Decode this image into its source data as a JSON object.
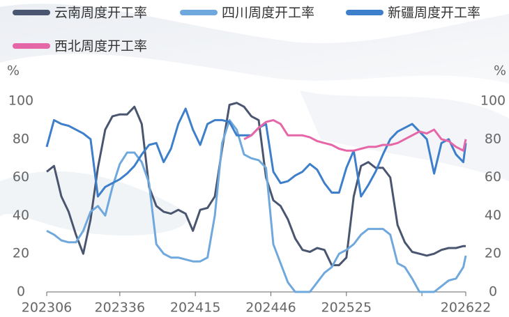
{
  "chart_data": {
    "type": "line",
    "y_label": "%",
    "y2_label": "%",
    "x": [
      0,
      3,
      6,
      9,
      12,
      15,
      18,
      21,
      24,
      27,
      30,
      33,
      36,
      39,
      42,
      45,
      48,
      51,
      54,
      57,
      60,
      63,
      66,
      69,
      72,
      75,
      78,
      81,
      84,
      87,
      90,
      93,
      96,
      99,
      102,
      105,
      108,
      111,
      114,
      117,
      120,
      123,
      126,
      129,
      132,
      135,
      138,
      141,
      144,
      147,
      150,
      153,
      156,
      159,
      162,
      165,
      168,
      171,
      172
    ],
    "xlim": [
      0,
      172
    ],
    "xticks": [
      {
        "value": 0,
        "label": "202306"
      },
      {
        "value": 30,
        "label": "202336"
      },
      {
        "value": 61,
        "label": "202415"
      },
      {
        "value": 92,
        "label": "202446"
      },
      {
        "value": 123,
        "label": "202525"
      },
      {
        "value": 154,
        "label": null
      },
      {
        "value": 172,
        "label": "202622"
      }
    ],
    "ylim": [
      0,
      100
    ],
    "yticks": [
      0,
      20,
      40,
      60,
      80,
      100
    ],
    "y2lim": [
      0,
      100
    ],
    "y2ticks": [
      0,
      20,
      40,
      60,
      80,
      100
    ],
    "series": [
      {
        "name": "云南周度开工率",
        "color": "#4a5670",
        "values": [
          63,
          66,
          50,
          42,
          30,
          20,
          38,
          65,
          85,
          92,
          93,
          93,
          97,
          88,
          55,
          45,
          42,
          41,
          43,
          41,
          32,
          43,
          44,
          50,
          75,
          98,
          99,
          97,
          92,
          90,
          60,
          48,
          45,
          38,
          28,
          22,
          21,
          23,
          22,
          14,
          14,
          18,
          50,
          66,
          68,
          65,
          65,
          60,
          35,
          26,
          21,
          20,
          19,
          20,
          22,
          23,
          23,
          24,
          24
        ]
      },
      {
        "name": "四川周度开工率",
        "color": "#6fa8dc",
        "values": [
          32,
          30,
          27,
          26,
          26,
          32,
          42,
          45,
          40,
          55,
          67,
          73,
          73,
          68,
          57,
          25,
          20,
          18,
          18,
          17,
          16,
          16,
          18,
          40,
          78,
          90,
          85,
          72,
          70,
          69,
          65,
          25,
          15,
          5,
          0,
          0,
          0,
          5,
          10,
          13,
          20,
          22,
          25,
          30,
          33,
          33,
          33,
          30,
          15,
          13,
          7,
          0,
          0,
          0,
          3,
          6,
          7,
          13,
          19
        ]
      },
      {
        "name": "新疆周度开工率",
        "color": "#3d7fca",
        "values": [
          76,
          90,
          88,
          87,
          85,
          83,
          80,
          50,
          55,
          57,
          59,
          62,
          66,
          72,
          77,
          78,
          68,
          75,
          88,
          96,
          85,
          77,
          88,
          90,
          90,
          89,
          82,
          82,
          82,
          86,
          88,
          63,
          57,
          58,
          61,
          63,
          67,
          64,
          57,
          52,
          52,
          65,
          74,
          50,
          56,
          63,
          72,
          80,
          84,
          86,
          88,
          84,
          80,
          62,
          78,
          80,
          72,
          68,
          78
        ],
        "axis": "y2"
      },
      {
        "name": "西北周度开工率",
        "color": "#e667a8",
        "values": [
          null,
          null,
          null,
          null,
          null,
          null,
          null,
          null,
          null,
          null,
          null,
          null,
          null,
          null,
          null,
          null,
          null,
          null,
          null,
          null,
          null,
          null,
          null,
          null,
          null,
          null,
          null,
          80,
          82,
          86,
          89,
          90,
          88,
          82,
          82,
          82,
          81,
          79,
          78,
          77,
          75,
          74,
          74,
          75,
          76,
          76,
          77,
          77,
          78,
          80,
          82,
          84,
          83,
          85,
          80,
          79,
          76,
          74,
          80
        ],
        "axis": "y2"
      }
    ]
  }
}
